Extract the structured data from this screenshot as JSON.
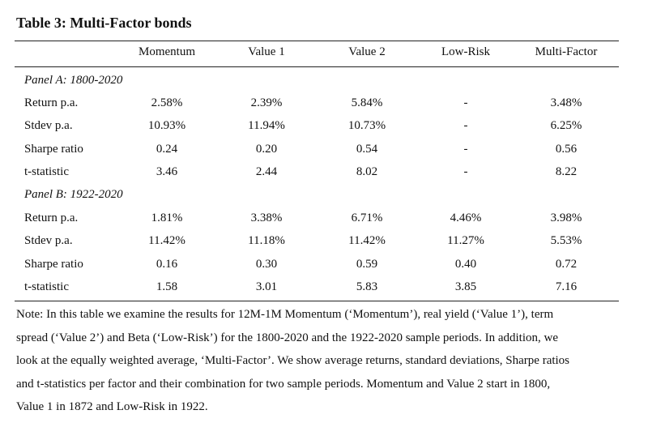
{
  "title": "Table 3: Multi-Factor bonds",
  "columns": [
    "Momentum",
    "Value 1",
    "Value 2",
    "Low-Risk",
    "Multi-Factor"
  ],
  "panels": [
    {
      "label": "Panel A: 1800-2020",
      "rows": [
        {
          "label": "Return p.a.",
          "values": [
            "2.58%",
            "2.39%",
            "5.84%",
            "-",
            "3.48%"
          ]
        },
        {
          "label": "Stdev p.a.",
          "values": [
            "10.93%",
            "11.94%",
            "10.73%",
            "-",
            "6.25%"
          ]
        },
        {
          "label": "Sharpe ratio",
          "values": [
            "0.24",
            "0.20",
            "0.54",
            "-",
            "0.56"
          ]
        },
        {
          "label": "t-statistic",
          "values": [
            "3.46",
            "2.44",
            "8.02",
            "-",
            "8.22"
          ]
        }
      ]
    },
    {
      "label": "Panel B: 1922-2020",
      "rows": [
        {
          "label": "Return p.a.",
          "values": [
            "1.81%",
            "3.38%",
            "6.71%",
            "4.46%",
            "3.98%"
          ]
        },
        {
          "label": "Stdev p.a.",
          "values": [
            "11.42%",
            "11.18%",
            "11.42%",
            "11.27%",
            "5.53%"
          ]
        },
        {
          "label": "Sharpe ratio",
          "values": [
            "0.16",
            "0.30",
            "0.59",
            "0.40",
            "0.72"
          ]
        },
        {
          "label": "t-statistic",
          "values": [
            "1.58",
            "3.01",
            "5.83",
            "3.85",
            "7.16"
          ]
        }
      ]
    }
  ],
  "note_lines": [
    "Note: In this table we examine the results for 12M-1M Momentum (‘Momentum’), real yield (‘Value 1’), term",
    "spread (‘Value 2’) and Beta (‘Low-Risk’) for the 1800-2020 and the 1922-2020 sample periods. In addition, we",
    "look at the equally weighted average, ‘Multi-Factor’. We show average returns, standard deviations, Sharpe ratios",
    "and t-statistics per factor and their combination for two sample periods. Momentum and Value 2 start in 1800,",
    "Value 1 in 1872 and Low-Risk in 1922."
  ]
}
